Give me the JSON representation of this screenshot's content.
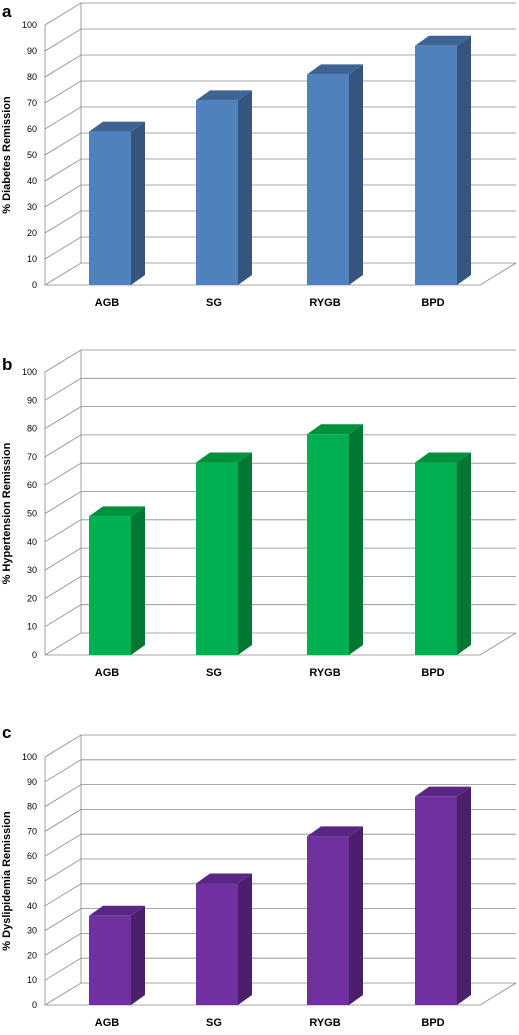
{
  "colors": {
    "diabetes": {
      "front": "#4f81bd",
      "side": "#36557e",
      "top": "#3d6494"
    },
    "hypertension": {
      "front": "#00b050",
      "side": "#007733",
      "top": "#00913f"
    },
    "dyslipidemia": {
      "front": "#7030a0",
      "side": "#4b1f6c",
      "top": "#5a2685"
    },
    "grid": "#8a8a8a"
  },
  "chart_data": [
    {
      "type": "bar",
      "panel_label": "a",
      "categories": [
        "AGB",
        "SG",
        "RYGB",
        "BPD"
      ],
      "values": [
        59,
        71,
        81,
        92
      ],
      "ylabel": "% Diabetes Remission",
      "ylim": [
        0,
        100
      ],
      "yticks": [
        "0",
        "10",
        "20",
        "30",
        "40",
        "50",
        "60",
        "70",
        "80",
        "90",
        "100"
      ],
      "grid": true,
      "style": "3d-column"
    },
    {
      "type": "bar",
      "panel_label": "b",
      "categories": [
        "AGB",
        "SG",
        "RYGB",
        "BPD"
      ],
      "values": [
        49,
        68,
        78,
        68
      ],
      "ylabel": "% Hypertension Remission",
      "ylim": [
        0,
        100
      ],
      "yticks": [
        "0",
        "10",
        "20",
        "30",
        "40",
        "50",
        "60",
        "70",
        "80",
        "90",
        "100"
      ],
      "grid": true,
      "style": "3d-column"
    },
    {
      "type": "bar",
      "panel_label": "c",
      "categories": [
        "AGB",
        "SG",
        "RYGB",
        "BPD"
      ],
      "values": [
        36,
        49,
        68,
        84
      ],
      "ylabel": "% Dyslipidemia Remission",
      "ylim": [
        0,
        100
      ],
      "yticks": [
        "0",
        "10",
        "20",
        "30",
        "40",
        "50",
        "60",
        "70",
        "80",
        "90",
        "100"
      ],
      "grid": true,
      "style": "3d-column"
    }
  ]
}
